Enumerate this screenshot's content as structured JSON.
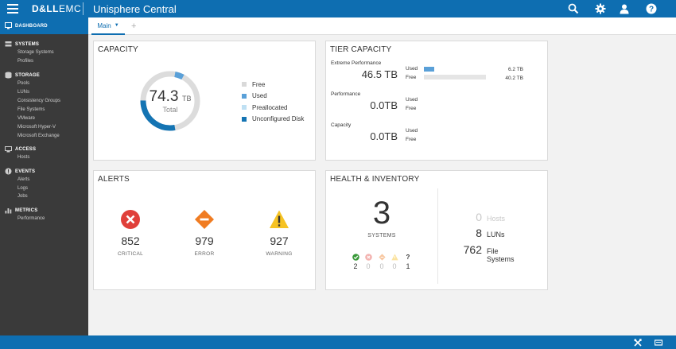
{
  "header": {
    "brand_bold": "D&LL",
    "brand_light": "EMC",
    "app_title": "Unisphere Central",
    "icons": [
      "search-icon",
      "gear-icon",
      "user-icon",
      "help-icon"
    ]
  },
  "sidebar": {
    "dashboard_label": "DASHBOARD",
    "sections": [
      {
        "label": "SYSTEMS",
        "icon": "systems-icon",
        "items": [
          "Storage Systems",
          "Profiles"
        ]
      },
      {
        "label": "STORAGE",
        "icon": "storage-icon",
        "items": [
          "Pools",
          "LUNs",
          "Consistency Groups",
          "File Systems",
          "VMware",
          "Microsoft Hyper-V",
          "Microsoft Exchange"
        ]
      },
      {
        "label": "ACCESS",
        "icon": "access-icon",
        "items": [
          "Hosts"
        ]
      },
      {
        "label": "EVENTS",
        "icon": "events-icon",
        "items": [
          "Alerts",
          "Logs",
          "Jobs"
        ]
      },
      {
        "label": "METRICS",
        "icon": "metrics-icon",
        "items": [
          "Performance"
        ]
      }
    ]
  },
  "tabs": {
    "main_label": "Main",
    "add_label": "+"
  },
  "capacity": {
    "title": "CAPACITY",
    "total_value": "74.3",
    "total_unit": "TB",
    "total_label": "Total",
    "used_fraction": 0.05,
    "legend": [
      {
        "label": "Free",
        "color": "#d9d9d9"
      },
      {
        "label": "Used",
        "color": "#5aa0d8"
      },
      {
        "label": "Preallocated",
        "color": "#bfe0f3"
      },
      {
        "label": "Unconfigured Disk",
        "color": "#1474b3"
      }
    ],
    "colors": {
      "free": "#dcdcdc",
      "used": "#5aa0d8",
      "unconfigured": "#1474b3"
    }
  },
  "tier_capacity": {
    "title": "TIER CAPACITY",
    "tiers": [
      {
        "name": "Extreme Performance",
        "value": "46.5 TB",
        "used_label": "Used",
        "free_label": "Free",
        "used_value": "6.2 TB",
        "free_value": "40.2 TB",
        "used_fraction": 0.133
      },
      {
        "name": "Performance",
        "value": "0.0TB",
        "used_label": "Used",
        "free_label": "Free"
      },
      {
        "name": "Capacity",
        "value": "0.0TB",
        "used_label": "Used",
        "free_label": "Free"
      }
    ]
  },
  "alerts": {
    "title": "ALERTS",
    "items": [
      {
        "count": "852",
        "label": "CRITICAL",
        "icon": "critical-icon",
        "color": "#e0403a"
      },
      {
        "count": "979",
        "label": "ERROR",
        "icon": "error-icon",
        "color": "#f07c22"
      },
      {
        "count": "927",
        "label": "WARNING",
        "icon": "warning-icon",
        "color": "#f6c324"
      }
    ]
  },
  "health": {
    "title": "HEALTH & INVENTORY",
    "systems_count": "3",
    "systems_label": "SYSTEMS",
    "status": [
      {
        "icon": "ok-icon",
        "count": "2",
        "color": "#3a9a3a"
      },
      {
        "icon": "critical-icon",
        "count": "0",
        "color": "#e0403a"
      },
      {
        "icon": "error-icon",
        "count": "0",
        "color": "#f07c22"
      },
      {
        "icon": "warning-icon",
        "count": "0",
        "color": "#f6c324"
      },
      {
        "icon": "unknown-icon",
        "count": "1",
        "label": "?",
        "color": "#333333"
      }
    ],
    "inventory": [
      {
        "count": "0",
        "label": "Hosts"
      },
      {
        "count": "8",
        "label": "LUNs"
      },
      {
        "count": "762",
        "label": "File Systems"
      }
    ]
  },
  "footer": {
    "icons": [
      "tools-icon",
      "console-icon"
    ]
  }
}
